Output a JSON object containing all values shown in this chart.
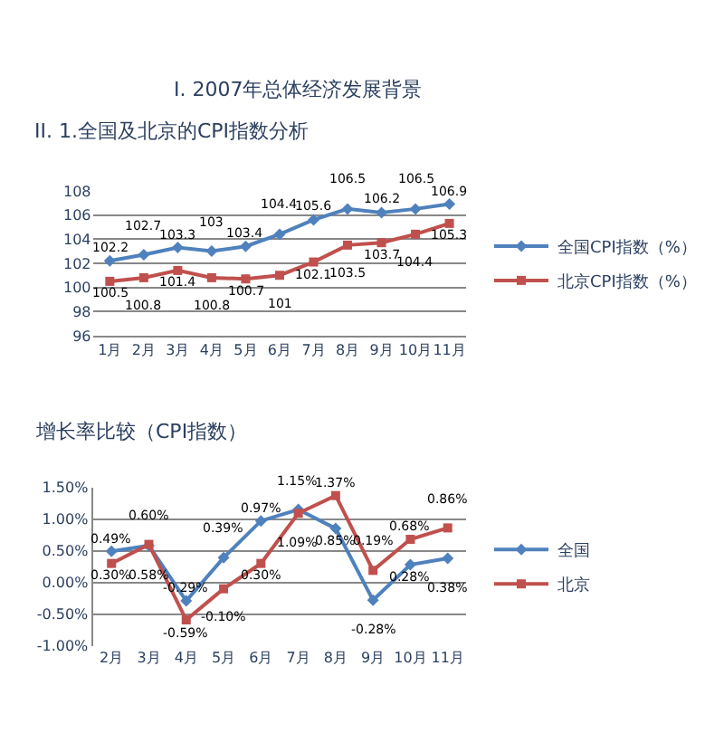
{
  "chart_data": [
    {
      "type": "line",
      "title": "I. 2007年总体经济发展背景",
      "subtitle": "II. 1.全国及北京的CPI指数分析",
      "categories": [
        "1月",
        "2月",
        "3月",
        "4月",
        "5月",
        "6月",
        "7月",
        "8月",
        "9月",
        "10月",
        "11月"
      ],
      "series": [
        {
          "name": "全国CPI指数（%）",
          "color": "#4f81bd",
          "marker": "diamond",
          "values": [
            102.2,
            102.7,
            103.3,
            103,
            103.4,
            104.4,
            105.6,
            106.5,
            106.2,
            106.5,
            106.9
          ]
        },
        {
          "name": "北京CPI指数（%）",
          "color": "#c0504d",
          "marker": "square",
          "values": [
            100.5,
            100.8,
            101.4,
            100.8,
            100.7,
            101,
            102.1,
            103.5,
            103.7,
            104.4,
            105.3
          ]
        }
      ],
      "ylim": [
        96,
        108
      ],
      "yticks": [
        96,
        98,
        100,
        102,
        104,
        106,
        108
      ],
      "grid": "y",
      "legend": "right",
      "data_labels": true
    },
    {
      "type": "line",
      "title": "增长率比较（CPI指数）",
      "categories": [
        "2月",
        "3月",
        "4月",
        "5月",
        "6月",
        "7月",
        "8月",
        "9月",
        "10月",
        "11月"
      ],
      "series": [
        {
          "name": "全国",
          "color": "#4f81bd",
          "marker": "diamond",
          "values": [
            0.49,
            0.58,
            -0.29,
            0.39,
            0.97,
            1.15,
            0.85,
            -0.28,
            0.28,
            0.38
          ],
          "value_labels": [
            "0.49%",
            "0.58%",
            "-0.29%",
            "0.39%",
            "0.97%",
            "1.15%",
            "0.85%",
            "-0.28%",
            "0.28%",
            "0.38%"
          ]
        },
        {
          "name": "北京",
          "color": "#c0504d",
          "marker": "square",
          "values": [
            0.3,
            0.6,
            -0.59,
            -0.1,
            0.3,
            1.09,
            1.37,
            0.19,
            0.68,
            0.86
          ],
          "value_labels": [
            "0.30%",
            "0.60%",
            "-0.59%",
            "-0.10%",
            "0.30%",
            "1.09%",
            "1.37%",
            "0.19%",
            "0.68%",
            "0.86%"
          ]
        }
      ],
      "ylim": [
        -1,
        1.5
      ],
      "yticks": [
        {
          "value": -1,
          "label": "-1.00%"
        },
        {
          "value": -0.5,
          "label": "-0.50%"
        },
        {
          "value": 0,
          "label": "0.00%"
        },
        {
          "value": 0.5,
          "label": "0.50%"
        },
        {
          "value": 1,
          "label": "1.00%"
        },
        {
          "value": 1.5,
          "label": "1.50%"
        }
      ],
      "grid": "y",
      "legend": "right"
    }
  ]
}
